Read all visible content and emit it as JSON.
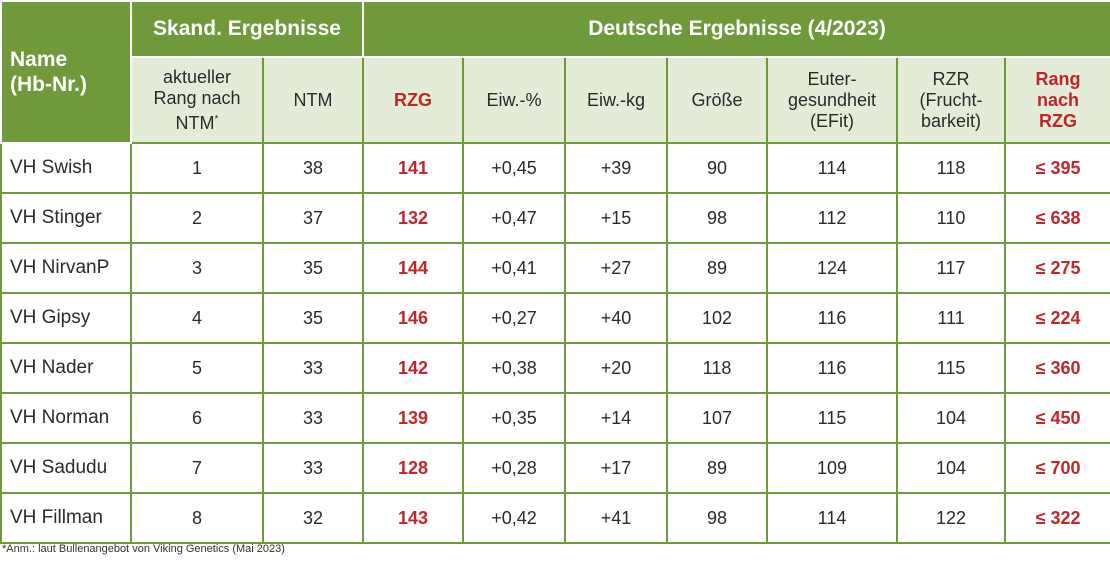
{
  "header": {
    "name_label": "Name",
    "name_sub": "(Hb-Nr.)",
    "group_skand": "Skand. Ergebnisse",
    "group_deutsch": "Deutsche Ergebnisse (4/2023)"
  },
  "columns": {
    "rang_ntm_line1": "aktueller",
    "rang_ntm_line2": "Rang nach",
    "rang_ntm_line3": "NTM",
    "rang_ntm_star": "*",
    "ntm": "NTM",
    "rzg": "RZG",
    "eiw_pct": "Eiw.-%",
    "eiw_kg": "Eiw.-kg",
    "groesse": "Größe",
    "euter_line1": "Euter-",
    "euter_line2": "gesundheit",
    "euter_line3": "(EFit)",
    "rzr_line1": "RZR",
    "rzr_line2": "(Frucht-",
    "rzr_line3": "barkeit)",
    "rang_rzg_line1": "Rang",
    "rang_rzg_line2": "nach",
    "rang_rzg_line3": "RZG"
  },
  "rows": [
    {
      "name": "VH Swish",
      "rang": "1",
      "ntm": "38",
      "rzg": "141",
      "eiw_pct": "+0,45",
      "eiw_kg": "+39",
      "groesse": "90",
      "euter": "114",
      "rzr": "118",
      "rang_rzg": "≤ 395"
    },
    {
      "name": "VH Stinger",
      "rang": "2",
      "ntm": "37",
      "rzg": "132",
      "eiw_pct": "+0,47",
      "eiw_kg": "+15",
      "groesse": "98",
      "euter": "112",
      "rzr": "110",
      "rang_rzg": "≤ 638"
    },
    {
      "name": "VH NirvanP",
      "rang": "3",
      "ntm": "35",
      "rzg": "144",
      "eiw_pct": "+0,41",
      "eiw_kg": "+27",
      "groesse": "89",
      "euter": "124",
      "rzr": "117",
      "rang_rzg": "≤ 275"
    },
    {
      "name": "VH Gipsy",
      "rang": "4",
      "ntm": "35",
      "rzg": "146",
      "eiw_pct": "+0,27",
      "eiw_kg": "+40",
      "groesse": "102",
      "euter": "116",
      "rzr": "111",
      "rang_rzg": "≤ 224"
    },
    {
      "name": "VH Nader",
      "rang": "5",
      "ntm": "33",
      "rzg": "142",
      "eiw_pct": "+0,38",
      "eiw_kg": "+20",
      "groesse": "118",
      "euter": "116",
      "rzr": "115",
      "rang_rzg": "≤ 360"
    },
    {
      "name": "VH Norman",
      "rang": "6",
      "ntm": "33",
      "rzg": "139",
      "eiw_pct": "+0,35",
      "eiw_kg": "+14",
      "groesse": "107",
      "euter": "115",
      "rzr": "104",
      "rang_rzg": "≤ 450"
    },
    {
      "name": "VH Sadudu",
      "rang": "7",
      "ntm": "33",
      "rzg": "128",
      "eiw_pct": "+0,28",
      "eiw_kg": "+17",
      "groesse": "89",
      "euter": "109",
      "rzr": "104",
      "rang_rzg": "≤ 700"
    },
    {
      "name": "VH Fillman",
      "rang": "8",
      "ntm": "32",
      "rzg": "143",
      "eiw_pct": "+0,42",
      "eiw_kg": "+41",
      "groesse": "98",
      "euter": "114",
      "rzr": "122",
      "rang_rzg": "≤ 322"
    }
  ],
  "footnote": "*Anm.: laut Bullenangebot von Viking Genetics (Mai 2023)",
  "colors": {
    "header_green": "#6f9a3b",
    "subheader_bg": "#e2ecd6",
    "accent_red": "#c0262a"
  }
}
